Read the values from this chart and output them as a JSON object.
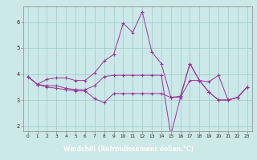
{
  "xlabel": "Windchill (Refroidissement éolien,°C)",
  "background_color": "#cce8e8",
  "line_color": "#993399",
  "grid_color": "#99cccc",
  "xlim": [
    -0.5,
    23.5
  ],
  "ylim": [
    1.8,
    6.6
  ],
  "xticks": [
    0,
    1,
    2,
    3,
    4,
    5,
    6,
    7,
    8,
    9,
    10,
    11,
    12,
    13,
    14,
    15,
    16,
    17,
    18,
    19,
    20,
    21,
    22,
    23
  ],
  "yticks": [
    2,
    3,
    4,
    5,
    6
  ],
  "line1_x": [
    0,
    1,
    2,
    3,
    4,
    5,
    6,
    7,
    8,
    9,
    10,
    11,
    12,
    13,
    14,
    15,
    16,
    17,
    18,
    19,
    20,
    21,
    22,
    23
  ],
  "line1_y": [
    3.9,
    3.6,
    3.8,
    3.85,
    3.85,
    3.75,
    3.75,
    4.05,
    4.5,
    4.75,
    5.95,
    5.6,
    6.4,
    4.85,
    4.4,
    3.1,
    3.15,
    4.4,
    3.75,
    3.7,
    3.95,
    3.0,
    3.1,
    3.5
  ],
  "line2_x": [
    0,
    1,
    2,
    3,
    4,
    5,
    6,
    7,
    8,
    9,
    10,
    11,
    12,
    13,
    14,
    15,
    16,
    17,
    18,
    19,
    20,
    21,
    22,
    23
  ],
  "line2_y": [
    3.9,
    3.6,
    3.5,
    3.45,
    3.4,
    3.35,
    3.35,
    3.05,
    2.9,
    3.25,
    3.25,
    3.25,
    3.25,
    3.25,
    3.25,
    3.1,
    3.1,
    3.75,
    3.75,
    3.3,
    3.0,
    3.0,
    3.1,
    3.5
  ],
  "line3_x": [
    0,
    1,
    2,
    3,
    4,
    5,
    6,
    7,
    8,
    9,
    10,
    11,
    12,
    13,
    14,
    15,
    16,
    17,
    18,
    19,
    20,
    21,
    22,
    23
  ],
  "line3_y": [
    3.9,
    3.6,
    3.55,
    3.55,
    3.45,
    3.4,
    3.4,
    3.55,
    3.9,
    3.95,
    3.95,
    3.95,
    3.95,
    3.95,
    3.95,
    1.65,
    3.1,
    4.4,
    3.75,
    3.3,
    3.0,
    3.0,
    3.1,
    3.5
  ],
  "xlabel_bg": "#660066",
  "xlabel_color": "#ffffff",
  "xlabel_fontsize": 5.5,
  "tick_fontsize": 4.2,
  "spine_color": "#888888"
}
